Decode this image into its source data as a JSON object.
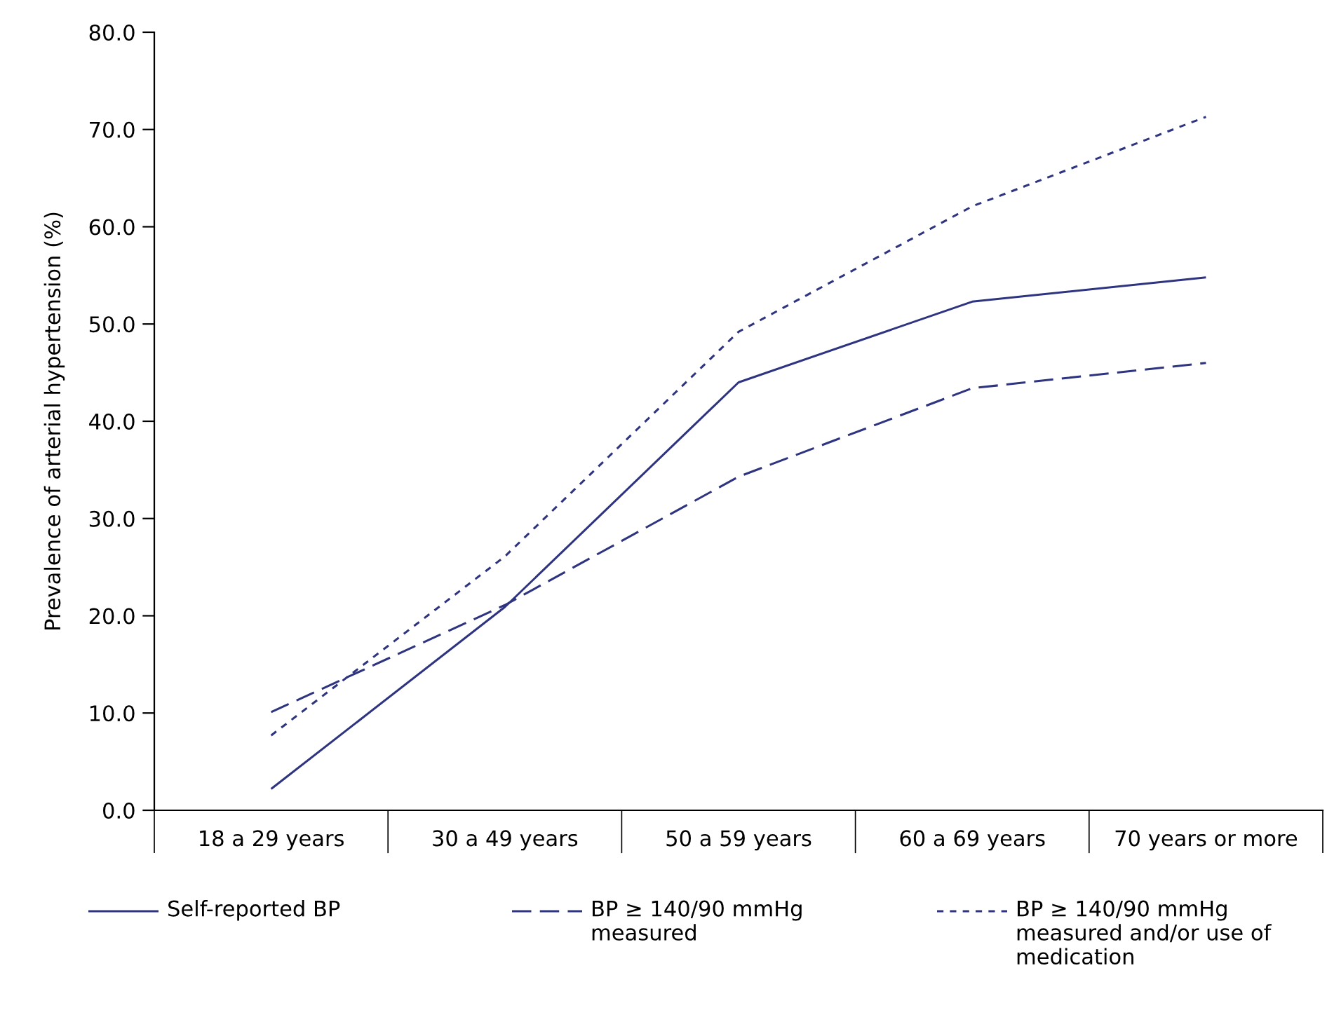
{
  "chart_data": {
    "type": "line",
    "ylabel": "Prevalence of arterial hypertension (%)",
    "categories": [
      "18 a 29 years",
      "30 a 49 years",
      "50 a 59 years",
      "60 a 69 years",
      "70 years or more"
    ],
    "ylim": [
      0,
      80
    ],
    "yticks": [
      {
        "value": 0,
        "label": "0.0"
      },
      {
        "value": 10,
        "label": "10.0"
      },
      {
        "value": 20,
        "label": "20.0"
      },
      {
        "value": 30,
        "label": "30.0"
      },
      {
        "value": 40,
        "label": "40.0"
      },
      {
        "value": 50,
        "label": "50.0"
      },
      {
        "value": 60,
        "label": "60.0"
      },
      {
        "value": 70,
        "label": "70.0"
      },
      {
        "value": 80,
        "label": "80.0"
      }
    ],
    "grid": false,
    "legend": "bottom",
    "marker": "none",
    "series": [
      {
        "name": "Self-reported BP",
        "color": "#2e3480",
        "line_style": "solid",
        "values": [
          2.2,
          20.9,
          44.0,
          52.3,
          54.8
        ]
      },
      {
        "name": "BP ≥ 140/90 mmHg measured",
        "color": "#2e3480",
        "line_style": "dashed",
        "values": [
          10.1,
          21.1,
          34.3,
          43.4,
          46.0
        ]
      },
      {
        "name": "BP ≥ 140/90 mmHg measured and/or use of medication",
        "color": "#2e3480",
        "line_style": "dotted",
        "values": [
          7.7,
          26.1,
          49.2,
          62.1,
          71.3
        ]
      }
    ]
  }
}
